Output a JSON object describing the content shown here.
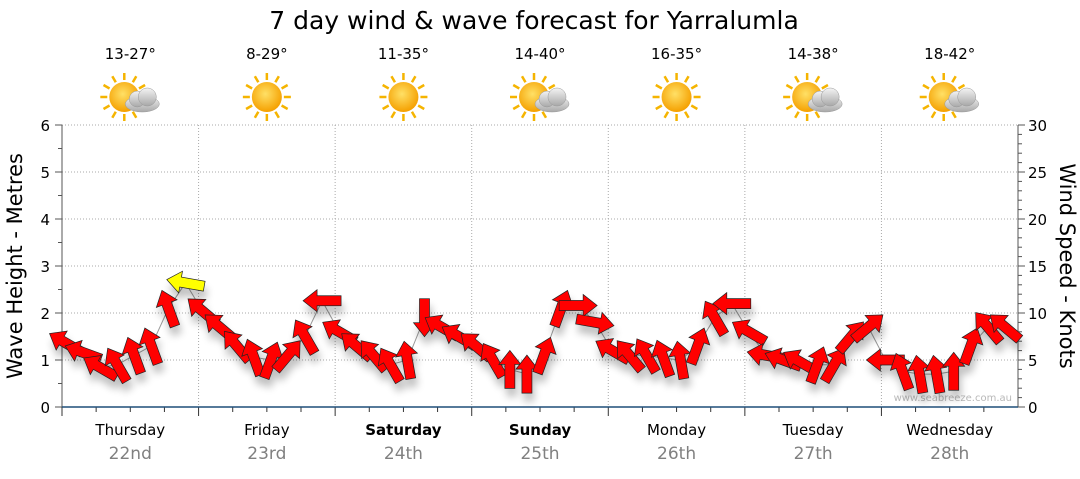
{
  "chart_data": {
    "type": "scatter",
    "title": "7 day wind & wave forecast for Yarralumla",
    "ylabel_left": "Wave Height - Metres",
    "ylabel_right": "Wind Speed - Knots",
    "ylim_left": [
      0,
      6
    ],
    "ylim_right": [
      0,
      30
    ],
    "yticks_left": [
      "0",
      "1",
      "2",
      "3",
      "4",
      "5",
      "6"
    ],
    "yticks_right": [
      "0",
      "5",
      "10",
      "15",
      "20",
      "25",
      "30"
    ],
    "grid": true,
    "watermark": "www.seabreeze.com.au",
    "days": [
      {
        "name": "Thursday",
        "date": "22nd",
        "temp": "13-27°",
        "icon": "sun-cloud-icon",
        "bold": false
      },
      {
        "name": "Friday",
        "date": "23rd",
        "temp": "8-29°",
        "icon": "sun-icon",
        "bold": false
      },
      {
        "name": "Saturday",
        "date": "24th",
        "temp": "11-35°",
        "icon": "sun-icon",
        "bold": true
      },
      {
        "name": "Sunday",
        "date": "25th",
        "temp": "14-40°",
        "icon": "sun-cloud-icon",
        "bold": true
      },
      {
        "name": "Monday",
        "date": "26th",
        "temp": "16-35°",
        "icon": "sun-icon",
        "bold": false
      },
      {
        "name": "Tuesday",
        "date": "27th",
        "temp": "14-38°",
        "icon": "sun-cloud-icon",
        "bold": false
      },
      {
        "name": "Wednesday",
        "date": "28th",
        "temp": "18-42°",
        "icon": "sun-cloud-icon",
        "bold": false
      }
    ],
    "series": [
      {
        "name": "Wind",
        "interval_hours": 3,
        "speed_knots": [
          6.8,
          5.8,
          4.2,
          4.5,
          5.5,
          6.5,
          10.5,
          13.2,
          10.2,
          8.5,
          6.5,
          5.3,
          5.0,
          5.5,
          7.5,
          11.3,
          8.0,
          6.5,
          5.5,
          4.5,
          5.0,
          9.5,
          8.5,
          7.5,
          6.5,
          5.0,
          4.0,
          3.5,
          5.5,
          10.5,
          10.8,
          9.0,
          6.0,
          5.5,
          5.5,
          5.2,
          5.0,
          6.5,
          9.5,
          11.0,
          8.0,
          5.5,
          5.0,
          4.8,
          4.5,
          4.5,
          7.5,
          8.5,
          5.0,
          3.8,
          3.5,
          3.5,
          3.8,
          6.5,
          8.5,
          8.5
        ],
        "direction_from_deg": [
          120,
          110,
          120,
          150,
          160,
          160,
          160,
          100,
          130,
          130,
          140,
          160,
          200,
          220,
          150,
          90,
          120,
          130,
          140,
          150,
          170,
          0,
          120,
          120,
          130,
          150,
          180,
          180,
          200,
          200,
          270,
          280,
          120,
          140,
          150,
          160,
          170,
          200,
          150,
          90,
          120,
          100,
          110,
          120,
          200,
          210,
          220,
          230,
          90,
          160,
          170,
          170,
          180,
          200,
          140,
          130
        ]
      }
    ],
    "colors": {
      "normal": "#ff0000",
      "strong": "#ffff00",
      "axis": "#1f4e79",
      "strong_threshold_knots": 12
    }
  }
}
